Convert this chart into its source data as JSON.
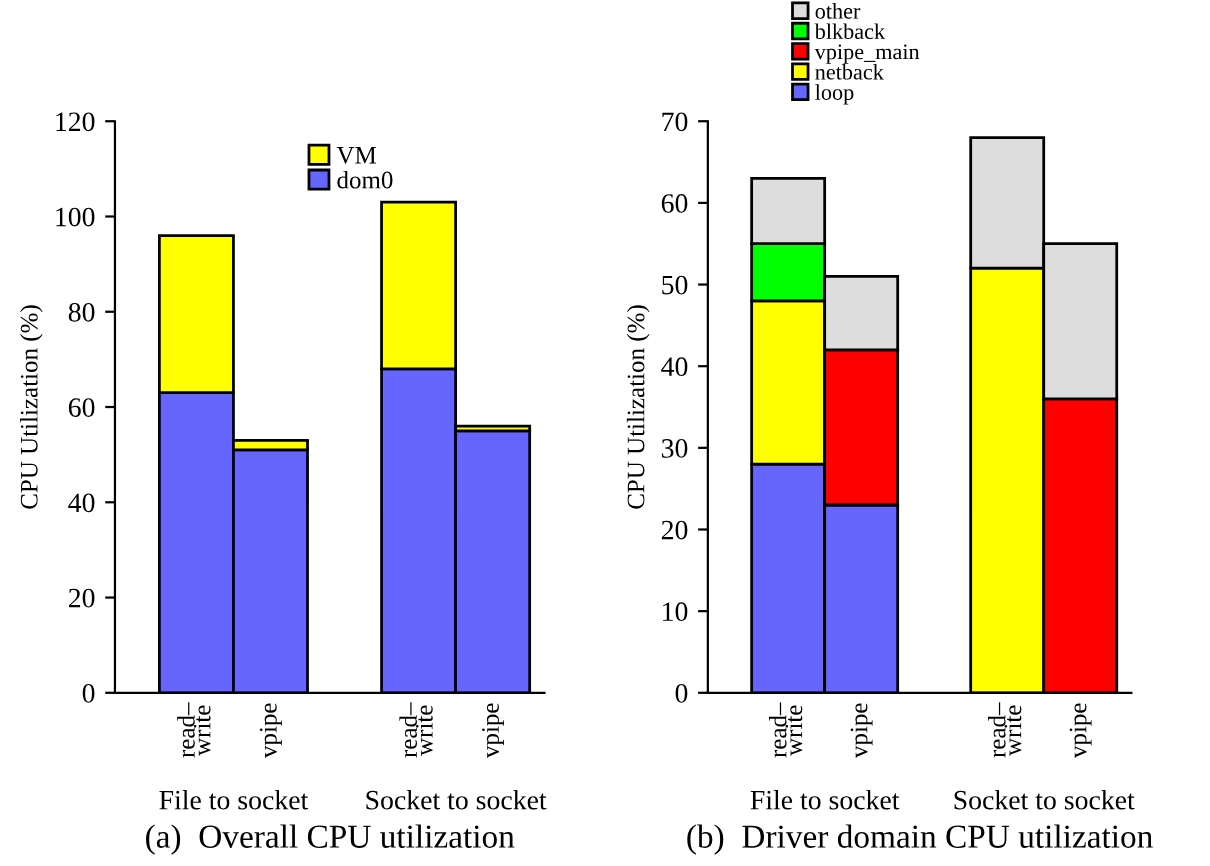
{
  "chart_data": [
    {
      "type": "bar",
      "title": "(a)  Overall CPU utilization",
      "ylabel": "CPU Utilization (%)",
      "stacked": true,
      "legend": "top",
      "grid": false,
      "categories": [
        "read–\nwrite",
        "vpipe",
        null,
        "read–\nwrite",
        "vpipe"
      ],
      "series": [
        {
          "name": "dom0",
          "color": "#6666ff",
          "values": [
            63,
            51,
            null,
            68,
            55
          ]
        },
        {
          "name": "VM",
          "color": "#ffff00",
          "values": [
            33,
            2,
            null,
            35,
            1
          ]
        }
      ],
      "ylim": [
        0,
        120
      ],
      "yticks": [
        0,
        20,
        40,
        60,
        80,
        100,
        120
      ],
      "annotations": [
        "File to socket",
        "Socket to socket"
      ]
    },
    {
      "type": "bar",
      "title": "(b)  Driver domain CPU utilization",
      "ylabel": "CPU Utilization (%)",
      "stacked": true,
      "legend": "top",
      "grid": false,
      "categories": [
        "read–\nwrite",
        "vpipe",
        null,
        "read–\nwrite",
        "vpipe"
      ],
      "series": [
        {
          "name": "loop",
          "color": "#6666ff",
          "values": [
            28,
            23,
            null,
            null,
            null
          ]
        },
        {
          "name": "netback",
          "color": "#ffff00",
          "values": [
            20,
            null,
            null,
            52,
            null
          ]
        },
        {
          "name": "vpipe_main",
          "color": "#ff0000",
          "values": [
            null,
            19,
            null,
            null,
            36
          ]
        },
        {
          "name": "blkback",
          "color": "#00ff00",
          "values": [
            7,
            null,
            null,
            null,
            null
          ]
        },
        {
          "name": "other",
          "color": "#dddddd",
          "values": [
            8,
            9,
            null,
            16,
            19
          ]
        }
      ],
      "ylim": [
        0,
        70
      ],
      "yticks": [
        0,
        10,
        20,
        30,
        40,
        50,
        60,
        70
      ],
      "annotations": [
        "File to socket",
        "Socket to socket"
      ]
    }
  ]
}
